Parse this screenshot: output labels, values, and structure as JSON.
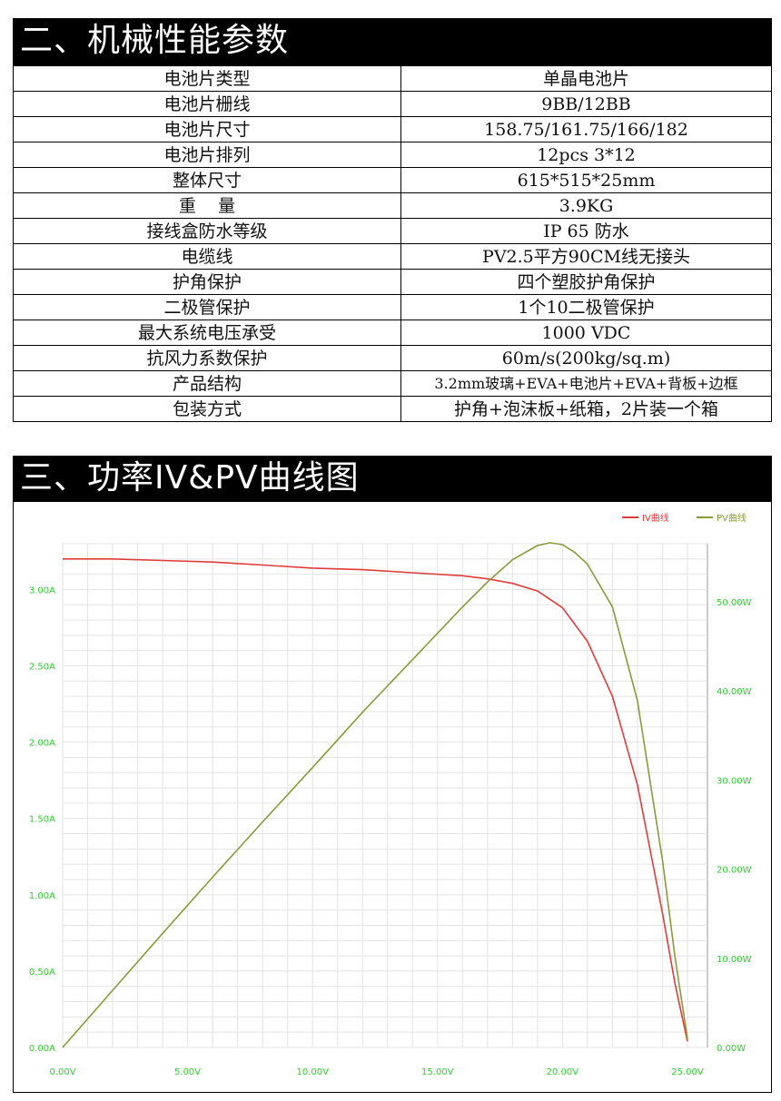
{
  "section2": {
    "title": "二、机械性能参数",
    "rows": [
      {
        "label": "电池片类型",
        "value": "单晶电池片"
      },
      {
        "label": "电池片栅线",
        "value": "9BB/12BB"
      },
      {
        "label": "电池片尺寸",
        "value": "158.75/161.75/166/182"
      },
      {
        "label": "电池片排列",
        "value": "12pcs 3*12"
      },
      {
        "label": "整体尺寸",
        "value": "615*515*25mm"
      },
      {
        "label": "重    量",
        "value": "3.9KG"
      },
      {
        "label": "接线盒防水等级",
        "value": "IP 65 防水"
      },
      {
        "label": "电缆线",
        "value": "PV2.5平方90CM线无接头"
      },
      {
        "label": "护角保护",
        "value": "四个塑胶护角保护"
      },
      {
        "label": "二极管保护",
        "value": "1个10二极管保护"
      },
      {
        "label": "最大系统电压承受",
        "value": "1000 VDC"
      },
      {
        "label": "抗风力系数保护",
        "value": "60m/s(200kg/sq.m)"
      },
      {
        "label": "产品结构",
        "value": "3.2mm玻璃+EVA+电池片+EVA+背板+边框"
      },
      {
        "label": "包装方式",
        "value": "护角+泡沫板+纸箱，2片装一个箱"
      }
    ]
  },
  "section3": {
    "title": "三、功率IV&PV曲线图"
  },
  "chart_data": {
    "type": "line",
    "title": "",
    "xlabel": "",
    "ylabel": "",
    "x_unit": "V",
    "xlim": [
      0,
      25.8
    ],
    "x_ticks": [
      "0.00V",
      "5.00V",
      "10.00V",
      "15.00V",
      "20.00V",
      "25.00V"
    ],
    "y_left_ticks": [
      "0.00A",
      "0.50A",
      "1.00A",
      "1.50A",
      "2.00A",
      "2.50A",
      "3.00A"
    ],
    "y_right_ticks": [
      "0.00W",
      "10.00W",
      "20.00W",
      "30.00W",
      "40.00W",
      "50.00W"
    ],
    "ylim_left": [
      0,
      3.3
    ],
    "ylim_right": [
      0,
      56.5
    ],
    "grid": true,
    "legend_position": "top-right",
    "series": [
      {
        "name": "IV曲线",
        "axis": "left",
        "color": "#e03c3c",
        "x": [
          0,
          2,
          4,
          6,
          8,
          10,
          12,
          14,
          16,
          17,
          18,
          19,
          20,
          21,
          22,
          23,
          24,
          24.5,
          25.0
        ],
        "y": [
          3.2,
          3.2,
          3.19,
          3.18,
          3.16,
          3.14,
          3.13,
          3.11,
          3.09,
          3.07,
          3.04,
          2.99,
          2.88,
          2.66,
          2.3,
          1.72,
          0.88,
          0.42,
          0.04
        ]
      },
      {
        "name": "PV曲线",
        "axis": "right",
        "color": "#8a9a3a",
        "x": [
          0,
          2,
          4,
          6,
          8,
          10,
          12,
          14,
          16,
          17,
          18,
          19,
          19.5,
          20,
          20.5,
          21,
          22,
          23,
          24,
          24.5,
          25.0
        ],
        "y": [
          0,
          6.4,
          12.8,
          19.1,
          25.3,
          31.4,
          37.6,
          43.5,
          49.4,
          52.2,
          54.7,
          56.3,
          56.6,
          56.4,
          55.5,
          54.2,
          49.4,
          38.9,
          21.0,
          10.2,
          1.0
        ]
      }
    ]
  },
  "colors": {
    "banner_bg": "#000000",
    "iv_line": "#e03c3c",
    "pv_line": "#8a9a3a",
    "axis_label": "#33cc33",
    "grid": "#e3e3e3"
  }
}
